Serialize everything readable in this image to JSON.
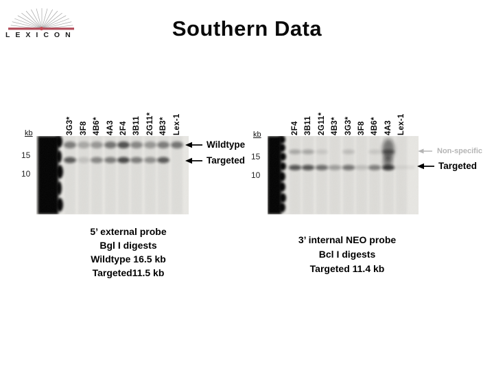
{
  "logo": {
    "wordmark": "LEXICON",
    "bar_color": "#b24a58",
    "dot_color": "#c64a55"
  },
  "title": "Southern Data",
  "left_blot": {
    "kb_label": "kb",
    "size_markers": [
      "15",
      "10"
    ],
    "lanes": [
      "3G3*",
      "3F8",
      "4B6*",
      "4A3",
      "2F4",
      "3B11",
      "2G11*",
      "4B3*",
      "Lex-1"
    ],
    "band_rows": [
      {
        "name": "Wildtype",
        "intensities": [
          0.55,
          0.3,
          0.4,
          0.6,
          0.8,
          0.5,
          0.4,
          0.55,
          0.6
        ]
      },
      {
        "name": "Targeted",
        "intensities": [
          0.75,
          0.15,
          0.5,
          0.55,
          0.85,
          0.55,
          0.45,
          0.75,
          0
        ]
      }
    ],
    "annotations": [
      {
        "label": "Wildtype",
        "color": "#000000",
        "icon": "arrow-left-icon"
      },
      {
        "label": "Targeted",
        "color": "#000000",
        "icon": "arrow-left-icon"
      }
    ],
    "caption": [
      "5’ external probe",
      "Bgl I digests",
      "Wildtype 16.5 kb",
      "Targeted11.5 kb"
    ]
  },
  "right_blot": {
    "kb_label": "kb",
    "size_markers": [
      "15",
      "10"
    ],
    "lanes": [
      "2F4",
      "3B11",
      "2G11*",
      "4B3*",
      "3G3*",
      "3F8",
      "4B6*",
      "4A3",
      "Lex-1"
    ],
    "band_rows": [
      {
        "name": "Non-specific",
        "intensities": [
          0.3,
          0.3,
          0.12,
          0,
          0.18,
          0,
          0.12,
          0.55,
          0
        ]
      },
      {
        "name": "Targeted",
        "intensities": [
          0.75,
          0.75,
          0.6,
          0.3,
          0.55,
          0.1,
          0.5,
          0.85,
          0
        ]
      }
    ],
    "annotations": [
      {
        "label": "Non-specific",
        "color": "#b5b5b5",
        "icon": "arrow-left-icon"
      },
      {
        "label": "Targeted",
        "color": "#000000",
        "icon": "arrow-left-icon"
      }
    ],
    "caption": [
      "3’ internal NEO probe",
      "Bcl I digests",
      "Targeted 11.4 kb"
    ]
  }
}
